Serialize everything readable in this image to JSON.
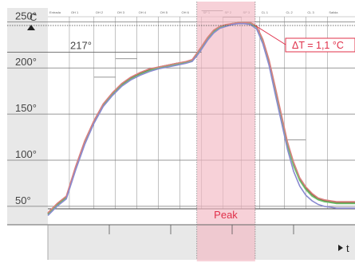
{
  "chart_data": {
    "type": "line",
    "ylabel": "C",
    "xlabel": "t",
    "ylim": [
      30,
      265
    ],
    "yticks": [
      {
        "value": 250,
        "label": "250°"
      },
      {
        "value": 200,
        "label": "200°"
      },
      {
        "value": 150,
        "label": "150°"
      },
      {
        "value": 100,
        "label": "100°"
      },
      {
        "value": 50,
        "label": "50°"
      }
    ],
    "x_unit": "relative time",
    "xlim": [
      0,
      100
    ],
    "reference_line": {
      "value": 217,
      "label": "217°"
    },
    "delta_annotation": {
      "label": "ΔT = 1,1 °C",
      "value": 246
    },
    "peak_region": {
      "start": 48.5,
      "end": 67.5,
      "label": "Peak"
    },
    "zones": [
      {
        "label": "Entrada",
        "start": 0,
        "end": 7
      },
      {
        "label": "OH 1",
        "start": 7,
        "end": 15
      },
      {
        "label": "OH 2",
        "start": 15,
        "end": 22
      },
      {
        "label": "OH 3",
        "start": 22,
        "end": 29
      },
      {
        "label": "OH 4",
        "start": 29,
        "end": 36
      },
      {
        "label": "OH 5",
        "start": 36,
        "end": 43
      },
      {
        "label": "OH 6",
        "start": 43,
        "end": 50
      },
      {
        "label": "SP 1",
        "start": 50,
        "end": 57
      },
      {
        "label": "SP 2",
        "start": 57,
        "end": 63
      },
      {
        "label": "SP 3",
        "start": 63,
        "end": 69
      },
      {
        "label": "CL 1",
        "start": 69,
        "end": 77
      },
      {
        "label": "CL 2",
        "start": 77,
        "end": 84
      },
      {
        "label": "CL 3",
        "start": 84,
        "end": 91
      },
      {
        "label": "Salida",
        "start": 91,
        "end": 100
      }
    ],
    "zone_setpoints": [
      {
        "start": 15,
        "end": 22,
        "value": 190
      },
      {
        "start": 22,
        "end": 29,
        "value": 210
      },
      {
        "start": 50,
        "end": 57,
        "value": 262
      },
      {
        "start": 57,
        "end": 63,
        "value": 255
      },
      {
        "start": 63,
        "end": 69,
        "value": 250
      },
      {
        "start": 77,
        "end": 84,
        "value": 122
      }
    ],
    "series": [
      {
        "color": "#7a6a3a",
        "x": [
          0,
          3,
          6,
          9,
          12,
          15,
          18,
          21,
          24,
          27,
          30,
          33,
          36,
          39,
          42,
          45,
          47,
          48.5,
          50,
          52,
          54,
          56,
          58,
          60,
          62,
          64,
          66,
          68,
          70,
          72,
          74,
          76,
          78,
          80,
          82,
          84,
          86,
          88,
          90,
          92,
          94,
          96,
          98,
          100
        ],
        "y": [
          42,
          52,
          60,
          92,
          120,
          142,
          160,
          172,
          182,
          189,
          194,
          198,
          201,
          203,
          205,
          206,
          208,
          215,
          222,
          232,
          240,
          244,
          246,
          248,
          249,
          249,
          249,
          245,
          230,
          208,
          178,
          148,
          118,
          96,
          80,
          70,
          63,
          58,
          56,
          55,
          54,
          54,
          54,
          54
        ]
      },
      {
        "color": "#6bbf6b",
        "x": [
          0,
          3,
          6,
          9,
          12,
          15,
          18,
          21,
          24,
          27,
          30,
          33,
          36,
          39,
          42,
          45,
          47,
          48.5,
          50,
          52,
          54,
          56,
          58,
          60,
          62,
          64,
          66,
          68,
          70,
          72,
          74,
          76,
          78,
          80,
          82,
          84,
          86,
          88,
          90,
          92,
          94,
          96,
          98,
          100
        ],
        "y": [
          41,
          51,
          59,
          90,
          118,
          141,
          159,
          171,
          181,
          188,
          193,
          197,
          200,
          202,
          204,
          206,
          208,
          214,
          221,
          231,
          239,
          244,
          246,
          248,
          249,
          249,
          248,
          244,
          228,
          206,
          176,
          146,
          116,
          94,
          78,
          68,
          61,
          57,
          55,
          54,
          53,
          53,
          53,
          53
        ]
      },
      {
        "color": "#d98080",
        "x": [
          0,
          3,
          6,
          9,
          12,
          15,
          18,
          21,
          24,
          27,
          30,
          33,
          36,
          39,
          42,
          45,
          47,
          48.5,
          50,
          52,
          54,
          56,
          58,
          60,
          62,
          64,
          66,
          68,
          70,
          72,
          74,
          76,
          78,
          80,
          82,
          84,
          86,
          88,
          90,
          92,
          94,
          96,
          98,
          100
        ],
        "y": [
          43,
          53,
          61,
          93,
          121,
          143,
          161,
          173,
          183,
          190,
          195,
          199,
          201,
          203,
          205,
          207,
          209,
          216,
          223,
          233,
          241,
          245,
          247,
          248,
          249,
          249,
          249,
          245,
          231,
          209,
          180,
          150,
          120,
          98,
          81,
          71,
          64,
          59,
          57,
          56,
          55,
          55,
          55,
          55
        ]
      },
      {
        "color": "#8a8ad0",
        "x": [
          0,
          3,
          6,
          9,
          12,
          15,
          18,
          21,
          24,
          27,
          30,
          33,
          36,
          39,
          42,
          45,
          47,
          48.5,
          50,
          52,
          54,
          56,
          58,
          60,
          62,
          64,
          66,
          68,
          70,
          72,
          74,
          76,
          78,
          80,
          82,
          84,
          86,
          88,
          90,
          92,
          94,
          96,
          98,
          100
        ],
        "y": [
          40,
          50,
          58,
          89,
          117,
          140,
          158,
          170,
          180,
          187,
          192,
          196,
          199,
          201,
          203,
          205,
          207,
          213,
          220,
          230,
          238,
          243,
          245,
          247,
          248,
          248,
          247,
          242,
          226,
          203,
          172,
          142,
          112,
          88,
          72,
          62,
          56,
          52,
          50,
          49,
          48,
          48,
          48,
          48
        ]
      }
    ]
  }
}
